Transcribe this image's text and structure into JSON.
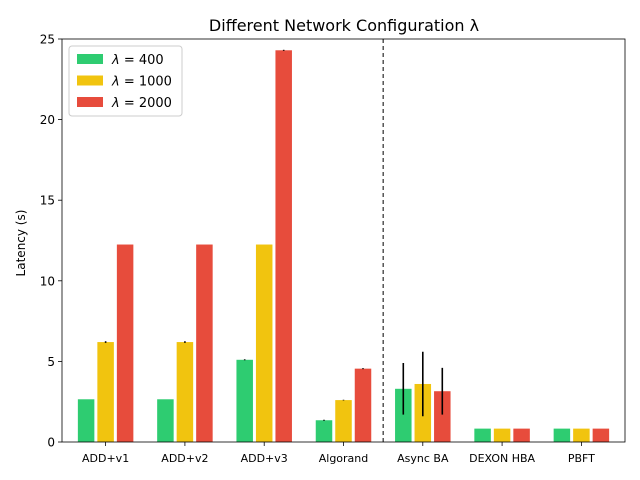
{
  "chart_data": {
    "type": "bar",
    "title": "Different Network Configuration λ",
    "xlabel": "",
    "ylabel": "Latency (s)",
    "ylim": [
      0,
      25
    ],
    "yticks": [
      0,
      5,
      10,
      15,
      20,
      25
    ],
    "grid": false,
    "legend_position": "top-left",
    "divider_after_category": 3,
    "categories": [
      "ADD+v1",
      "ADD+v2",
      "ADD+v3",
      "Algorand",
      "Async BA",
      "DEXON HBA",
      "PBFT"
    ],
    "series": [
      {
        "name": "λ = 400",
        "name_lambda": "λ",
        "name_eq": " = 400",
        "color": "#2ecc71",
        "values": [
          2.65,
          2.65,
          5.1,
          1.35,
          3.3,
          0.83,
          0.83
        ],
        "errors": [
          0.0,
          0.0,
          0.03,
          0.03,
          1.6,
          0.0,
          0.0
        ]
      },
      {
        "name": "λ = 1000",
        "name_lambda": "λ",
        "name_eq": " = 1000",
        "color": "#f1c40f",
        "values": [
          6.2,
          6.2,
          12.25,
          2.6,
          3.6,
          0.83,
          0.83
        ],
        "errors": [
          0.05,
          0.05,
          0.0,
          0.02,
          2.0,
          0.0,
          0.0
        ]
      },
      {
        "name": "λ = 2000",
        "name_lambda": "λ",
        "name_eq": " = 2000",
        "color": "#e74c3c",
        "values": [
          12.25,
          12.25,
          24.3,
          4.55,
          3.15,
          0.83,
          0.83
        ],
        "errors": [
          0.0,
          0.0,
          0.03,
          0.03,
          1.45,
          0.0,
          0.0
        ]
      }
    ]
  }
}
